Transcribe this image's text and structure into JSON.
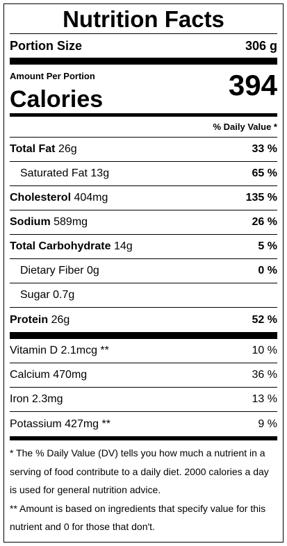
{
  "title": "Nutrition Facts",
  "portion": {
    "label": "Portion Size",
    "value": "306 g"
  },
  "calories": {
    "caption": "Amount Per Portion",
    "label": "Calories",
    "value": "394"
  },
  "dv_header": "% Daily Value *",
  "nutrients": [
    {
      "name": "Total Fat",
      "amount": "26g",
      "dv": "33 %",
      "bold": true,
      "indent": false
    },
    {
      "name": "Saturated Fat",
      "amount": "13g",
      "dv": "65 %",
      "bold": false,
      "indent": true
    },
    {
      "name": "Cholesterol",
      "amount": "404mg",
      "dv": "135 %",
      "bold": true,
      "indent": false
    },
    {
      "name": "Sodium",
      "amount": "589mg",
      "dv": "26 %",
      "bold": true,
      "indent": false
    },
    {
      "name": "Total Carbohydrate",
      "amount": "14g",
      "dv": "5 %",
      "bold": true,
      "indent": false
    },
    {
      "name": "Dietary Fiber",
      "amount": "0g",
      "dv": "0 %",
      "bold": false,
      "indent": true
    },
    {
      "name": "Sugar",
      "amount": "0.7g",
      "bold": false,
      "indent": true
    },
    {
      "name": "Protein",
      "amount": "26g",
      "dv": "52 %",
      "bold": true,
      "indent": false
    }
  ],
  "vitamins": [
    {
      "name": "Vitamin D",
      "amount": "2.1mcg **",
      "dv": "10 %"
    },
    {
      "name": "Calcium",
      "amount": "470mg",
      "dv": "36 %"
    },
    {
      "name": "Iron",
      "amount": "2.3mg",
      "dv": "13 %"
    },
    {
      "name": "Potassium",
      "amount": "427mg **",
      "dv": "9 %"
    }
  ],
  "footnotes": [
    "* The % Daily Value (DV) tells you how much a nutrient in a serving of food contribute to a daily diet. 2000 calories a day is used for general nutrition advice.",
    "** Amount is based on ingredients that specify value for this nutrient and 0 for those that don't."
  ]
}
